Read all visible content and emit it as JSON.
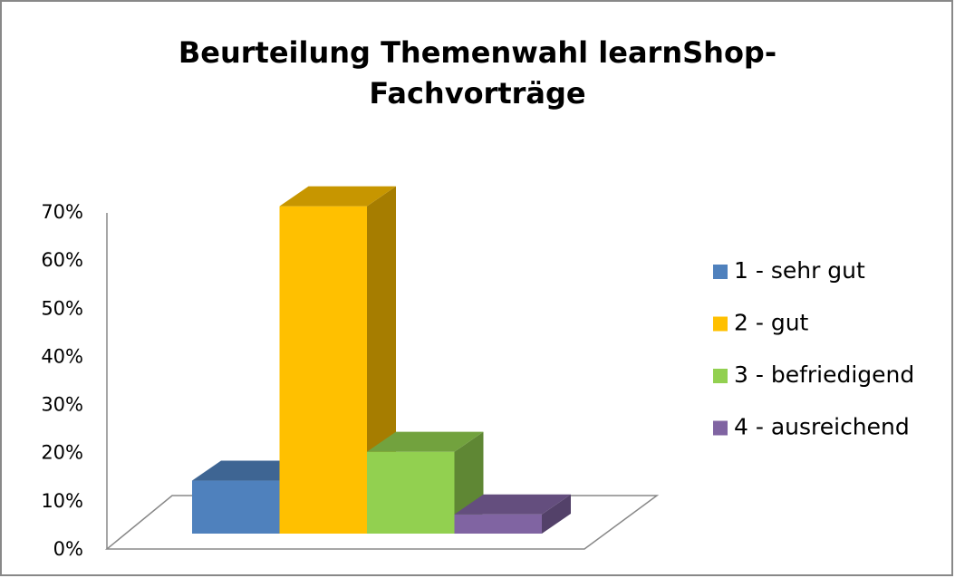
{
  "chart_data": {
    "type": "bar3d",
    "title": [
      "Beurteilung Themenwahl learnShop-",
      "Fachvorträge"
    ],
    "categories": [
      "1 - sehr gut",
      "2 - gut",
      "3 - befriedigend",
      "4 - ausreichend"
    ],
    "values": [
      11,
      68,
      17,
      4
    ],
    "colors": [
      "#4f81bd",
      "#ffc000",
      "#92d050",
      "#8064a2"
    ],
    "ylim": [
      0,
      70
    ],
    "yticks": [
      {
        "value": 0,
        "label": "0%"
      },
      {
        "value": 10,
        "label": "10%"
      },
      {
        "value": 20,
        "label": "20%"
      },
      {
        "value": 30,
        "label": "30%"
      },
      {
        "value": 40,
        "label": "40%"
      },
      {
        "value": 50,
        "label": "50%"
      },
      {
        "value": 60,
        "label": "60%"
      },
      {
        "value": 70,
        "label": "70%"
      }
    ],
    "legend": "right"
  }
}
